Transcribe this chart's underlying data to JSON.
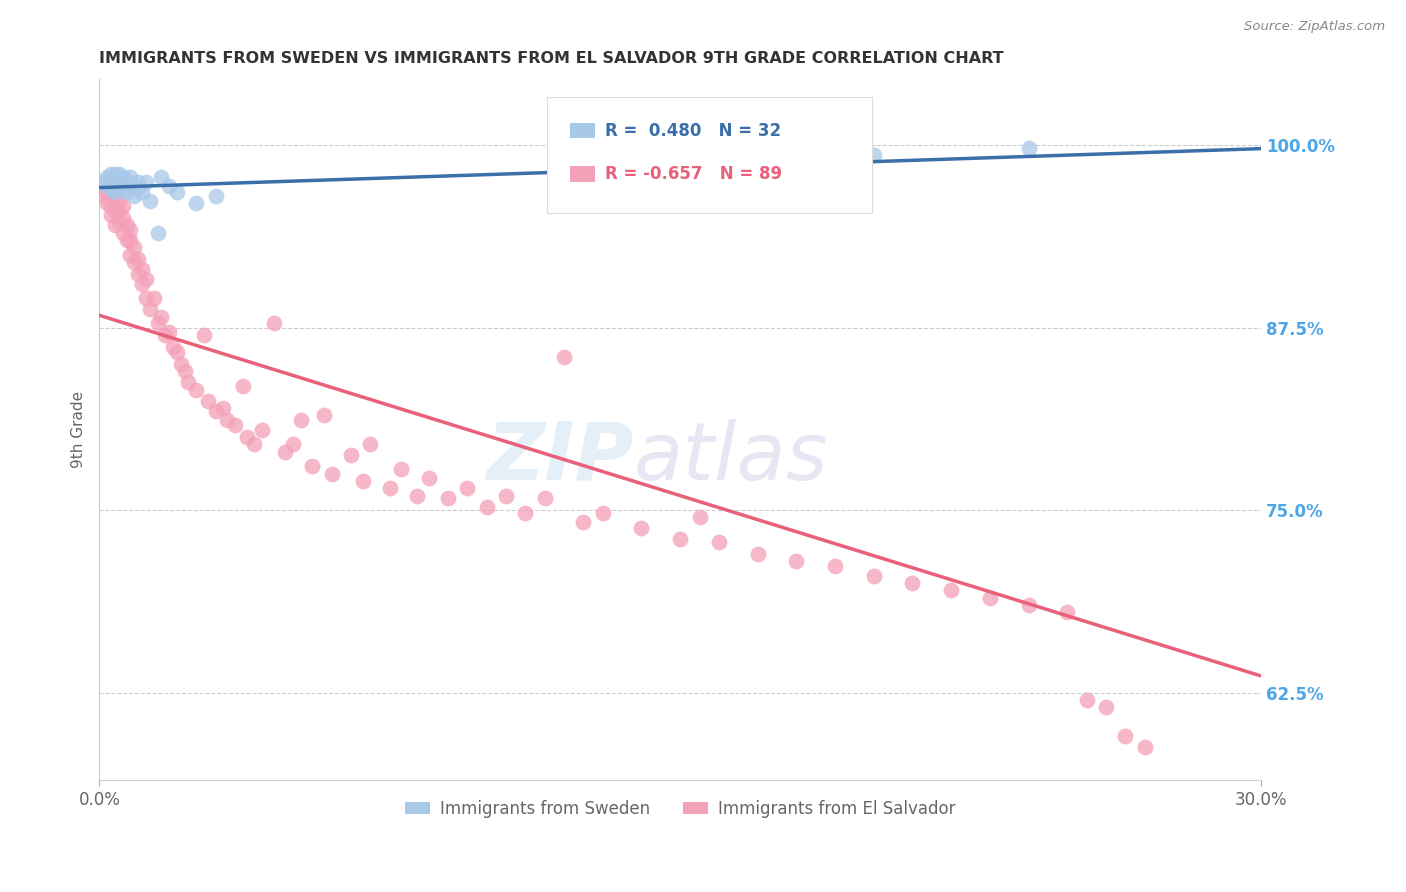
{
  "title": "IMMIGRANTS FROM SWEDEN VS IMMIGRANTS FROM EL SALVADOR 9TH GRADE CORRELATION CHART",
  "source": "Source: ZipAtlas.com",
  "ylabel": "9th Grade",
  "ytick_labels": [
    "100.0%",
    "87.5%",
    "75.0%",
    "62.5%"
  ],
  "ytick_values": [
    1.0,
    0.875,
    0.75,
    0.625
  ],
  "xlim": [
    0.0,
    0.3
  ],
  "ylim": [
    0.565,
    1.045
  ],
  "legend_blue_label": "Immigrants from Sweden",
  "legend_pink_label": "Immigrants from El Salvador",
  "R_blue": 0.48,
  "N_blue": 32,
  "R_pink": -0.657,
  "N_pink": 89,
  "blue_color": "#a8c8e8",
  "pink_color": "#f4a0b8",
  "blue_line_color": "#3a6faa",
  "pink_line_color": "#e8607a",
  "background_color": "#ffffff",
  "grid_color": "#cccccc",
  "title_color": "#333333",
  "right_tick_color": "#4da6e8",
  "sweden_x": [
    0.001,
    0.002,
    0.002,
    0.003,
    0.003,
    0.003,
    0.004,
    0.004,
    0.004,
    0.005,
    0.005,
    0.005,
    0.006,
    0.006,
    0.007,
    0.007,
    0.008,
    0.008,
    0.009,
    0.01,
    0.01,
    0.011,
    0.012,
    0.013,
    0.015,
    0.016,
    0.018,
    0.02,
    0.025,
    0.03,
    0.2,
    0.24
  ],
  "sweden_y": [
    0.975,
    0.972,
    0.978,
    0.97,
    0.975,
    0.98,
    0.968,
    0.975,
    0.98,
    0.972,
    0.976,
    0.98,
    0.97,
    0.978,
    0.968,
    0.975,
    0.972,
    0.978,
    0.965,
    0.97,
    0.975,
    0.968,
    0.975,
    0.962,
    0.94,
    0.978,
    0.972,
    0.968,
    0.96,
    0.965,
    0.993,
    0.998
  ],
  "salvador_x": [
    0.001,
    0.002,
    0.002,
    0.003,
    0.003,
    0.004,
    0.004,
    0.004,
    0.005,
    0.005,
    0.005,
    0.006,
    0.006,
    0.006,
    0.007,
    0.007,
    0.008,
    0.008,
    0.008,
    0.009,
    0.009,
    0.01,
    0.01,
    0.011,
    0.011,
    0.012,
    0.012,
    0.013,
    0.014,
    0.015,
    0.016,
    0.017,
    0.018,
    0.019,
    0.02,
    0.021,
    0.022,
    0.023,
    0.025,
    0.027,
    0.028,
    0.03,
    0.032,
    0.033,
    0.035,
    0.037,
    0.038,
    0.04,
    0.042,
    0.045,
    0.048,
    0.05,
    0.052,
    0.055,
    0.058,
    0.06,
    0.065,
    0.068,
    0.07,
    0.075,
    0.078,
    0.082,
    0.085,
    0.09,
    0.095,
    0.1,
    0.105,
    0.11,
    0.115,
    0.12,
    0.125,
    0.13,
    0.14,
    0.15,
    0.155,
    0.16,
    0.17,
    0.18,
    0.19,
    0.2,
    0.21,
    0.22,
    0.23,
    0.24,
    0.25,
    0.255,
    0.26,
    0.265,
    0.27
  ],
  "salvador_y": [
    0.965,
    0.96,
    0.968,
    0.952,
    0.958,
    0.945,
    0.955,
    0.962,
    0.948,
    0.955,
    0.962,
    0.94,
    0.95,
    0.958,
    0.935,
    0.945,
    0.925,
    0.935,
    0.942,
    0.92,
    0.93,
    0.912,
    0.922,
    0.905,
    0.915,
    0.895,
    0.908,
    0.888,
    0.895,
    0.878,
    0.882,
    0.87,
    0.872,
    0.862,
    0.858,
    0.85,
    0.845,
    0.838,
    0.832,
    0.87,
    0.825,
    0.818,
    0.82,
    0.812,
    0.808,
    0.835,
    0.8,
    0.795,
    0.805,
    0.878,
    0.79,
    0.795,
    0.812,
    0.78,
    0.815,
    0.775,
    0.788,
    0.77,
    0.795,
    0.765,
    0.778,
    0.76,
    0.772,
    0.758,
    0.765,
    0.752,
    0.76,
    0.748,
    0.758,
    0.855,
    0.742,
    0.748,
    0.738,
    0.73,
    0.745,
    0.728,
    0.72,
    0.715,
    0.712,
    0.705,
    0.7,
    0.695,
    0.69,
    0.685,
    0.68,
    0.62,
    0.615,
    0.595,
    0.588
  ]
}
